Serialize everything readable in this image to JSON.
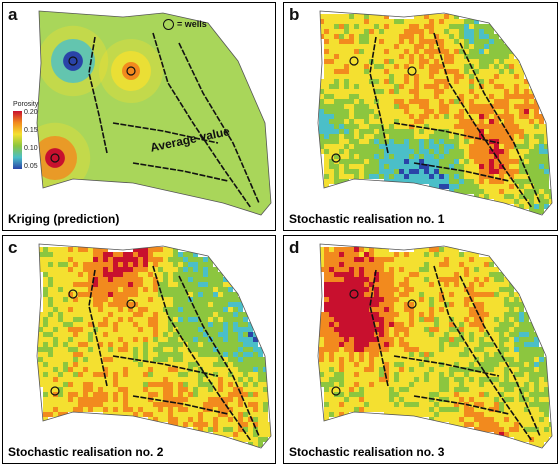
{
  "panels": [
    {
      "letter": "a",
      "caption": "Kriging (prediction)",
      "mode": "kriging"
    },
    {
      "letter": "b",
      "caption": "Stochastic realisation no. 1",
      "mode": "stochastic"
    },
    {
      "letter": "c",
      "caption": "Stochastic realisation no. 2",
      "mode": "stochastic"
    },
    {
      "letter": "d",
      "caption": "Stochastic realisation no. 3",
      "mode": "stochastic"
    }
  ],
  "legend": {
    "title": "Porosity",
    "ticks": [
      "0.20",
      "0.15",
      "0.10",
      "0.05"
    ]
  },
  "wells_key": "= wells",
  "average_label": "Average value",
  "colors": {
    "low": "#2a44a8",
    "mid_low": "#4bbfc8",
    "mid": "#8cc63f",
    "mid_high": "#f4e030",
    "high": "#f28a1e",
    "max": "#c8102e"
  }
}
